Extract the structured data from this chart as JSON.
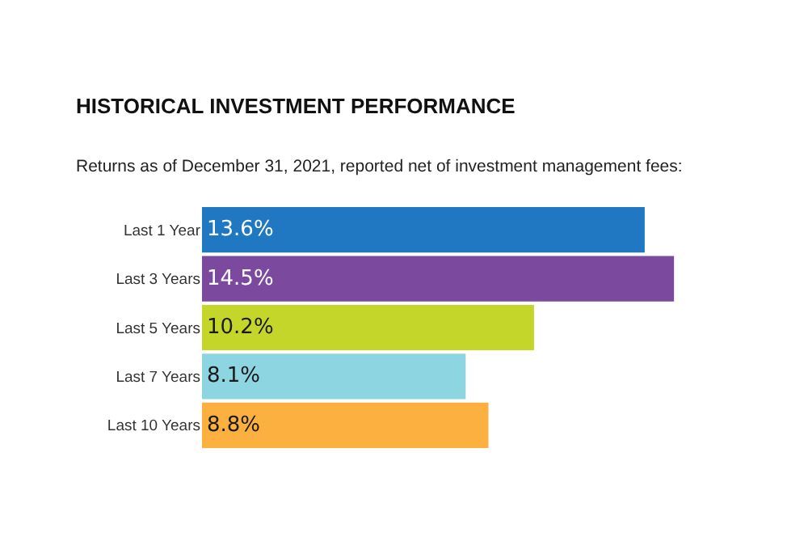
{
  "chart_data": {
    "type": "bar",
    "orientation": "horizontal",
    "title": "HISTORICAL INVESTMENT PERFORMANCE",
    "subtitle": "Returns as of December 31, 2021, reported net of investment management fees:",
    "categories": [
      "Last 1 Year",
      "Last 3 Years",
      "Last 5 Years",
      "Last 7 Years",
      "Last 10 Years"
    ],
    "values": [
      13.6,
      14.5,
      10.2,
      8.1,
      8.8
    ],
    "colors": [
      "#1f78c1",
      "#7b4a9e",
      "#c5d62b",
      "#8dd5e0",
      "#fbb040"
    ],
    "value_labels": [
      "13.6%",
      "14.5%",
      "10.2%",
      "8.1%",
      "8.8%"
    ]
  }
}
